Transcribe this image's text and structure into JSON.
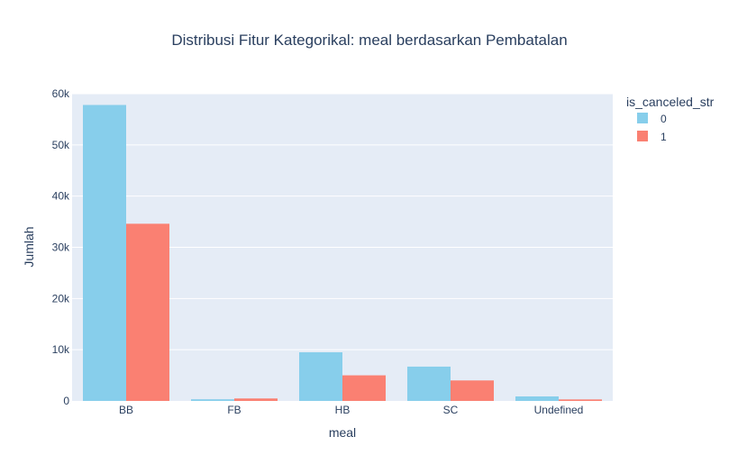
{
  "chart_data": {
    "type": "bar",
    "title": "Distribusi Fitur Kategorikal: meal berdasarkan Pembatalan",
    "xlabel": "meal",
    "ylabel": "Jumlah",
    "categories": [
      "BB",
      "FB",
      "HB",
      "SC",
      "Undefined"
    ],
    "series": [
      {
        "name": "0",
        "color": "#87ceeb",
        "values": [
          57800,
          320,
          9500,
          6700,
          880
        ]
      },
      {
        "name": "1",
        "color": "#fa8072",
        "values": [
          34600,
          480,
          5000,
          4000,
          290
        ]
      }
    ],
    "ylim": [
      0,
      60000
    ],
    "yticks": [
      0,
      10000,
      20000,
      30000,
      40000,
      50000,
      60000
    ],
    "ytick_labels": [
      "0",
      "10k",
      "20k",
      "30k",
      "40k",
      "50k",
      "60k"
    ],
    "grid": true,
    "legend": {
      "title": "is_canceled_str",
      "placement": "top-right"
    },
    "colors": {
      "plot_background": "#e5ecf6",
      "grid": "#ffffff",
      "text": "#2a3f5f"
    }
  }
}
